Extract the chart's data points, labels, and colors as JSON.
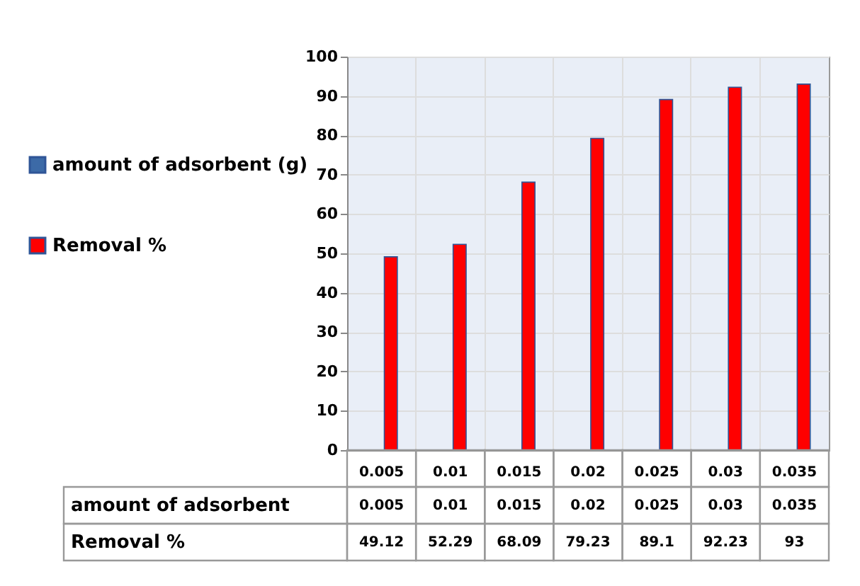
{
  "chart_data": {
    "type": "bar",
    "categories": [
      "0.005",
      "0.01",
      "0.015",
      "0.02",
      "0.025",
      "0.03",
      "0.035"
    ],
    "series": [
      {
        "name": "amount of adsorbent (g)",
        "color": "#3c6aa7",
        "values": [
          0.005,
          0.01,
          0.015,
          0.02,
          0.025,
          0.03,
          0.035
        ]
      },
      {
        "name": "Removal %",
        "color": "#ff0000",
        "values": [
          49.12,
          52.29,
          68.09,
          79.23,
          89.1,
          92.23,
          93
        ]
      }
    ],
    "annotations": [
      "amount of adsorbent",
      "Removal %"
    ],
    "ylim": [
      0,
      100
    ],
    "yticks": [
      0,
      10,
      20,
      30,
      40,
      50,
      60,
      70,
      80,
      90,
      100
    ],
    "grid": true,
    "legend": "left",
    "data_labels": true
  }
}
